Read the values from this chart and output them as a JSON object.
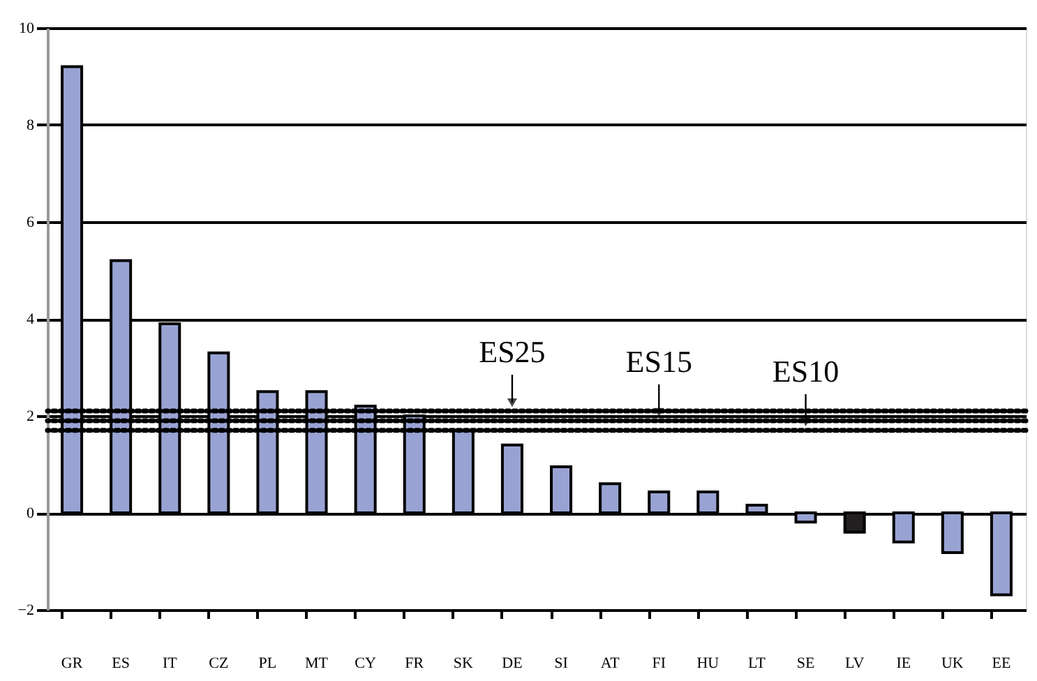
{
  "chart_data": {
    "type": "bar",
    "categories": [
      "GR",
      "ES",
      "IT",
      "CZ",
      "PL",
      "MT",
      "CY",
      "FR",
      "SK",
      "DE",
      "SI",
      "AT",
      "FI",
      "HU",
      "LT",
      "SE",
      "LV",
      "IE",
      "UK",
      "EE"
    ],
    "values": [
      9.2,
      5.2,
      3.9,
      3.3,
      2.5,
      2.5,
      2.2,
      2.0,
      1.7,
      1.4,
      0.95,
      0.6,
      0.43,
      0.43,
      0.16,
      -0.19,
      -0.4,
      -0.6,
      -0.82,
      -1.69
    ],
    "colors": [
      "#99a3d3",
      "#99a3d3",
      "#99a3d3",
      "#99a3d3",
      "#99a3d3",
      "#99a3d3",
      "#99a3d3",
      "#99a3d3",
      "#99a3d3",
      "#99a3d3",
      "#99a3d3",
      "#99a3d3",
      "#99a3d3",
      "#99a3d3",
      "#99a3d3",
      "#99a3d3",
      "#231f20",
      "#99a3d3",
      "#99a3d3",
      "#99a3d3"
    ],
    "ylim": [
      -2,
      10
    ],
    "yticks": [
      -2,
      0,
      2,
      4,
      6,
      8,
      10
    ],
    "grid": "y",
    "ref_lines": [
      {
        "axis": "y",
        "value": 2.1,
        "label": "ES25",
        "line_style": "dotted"
      },
      {
        "axis": "y",
        "value": 1.9,
        "label": "ES15",
        "line_style": "dotted"
      },
      {
        "axis": "y",
        "value": 1.7,
        "label": "ES10",
        "line_style": "dotted"
      }
    ]
  }
}
